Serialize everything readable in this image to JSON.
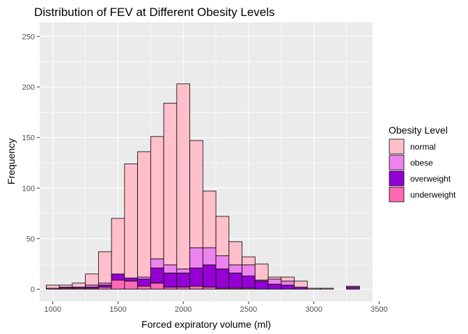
{
  "chart_data": {
    "type": "bar",
    "stacked": true,
    "title": "Distribution of FEV at Different Obesity Levels",
    "xlabel": "Forced expiratory volume (ml)",
    "ylabel": "Frequency",
    "xlim": [
      900,
      3450
    ],
    "ylim": [
      -12,
      264
    ],
    "x_ticks": [
      1000,
      1500,
      2000,
      2500,
      3000,
      3500
    ],
    "y_ticks": [
      0,
      50,
      100,
      150,
      200,
      250
    ],
    "bin_width": 100,
    "bin_centers": [
      1000,
      1100,
      1200,
      1300,
      1400,
      1500,
      1600,
      1700,
      1800,
      1900,
      2000,
      2100,
      2200,
      2300,
      2400,
      2500,
      2600,
      2700,
      2800,
      2900,
      3000,
      3100,
      3200,
      3300
    ],
    "legend": {
      "title": "Obesity Level",
      "position": "right"
    },
    "grid": true,
    "series": [
      {
        "name": "underweight",
        "color": "#ff69b4",
        "values": [
          1,
          1,
          1,
          1,
          2,
          9,
          8,
          3,
          6,
          2,
          2,
          3,
          2,
          1,
          1,
          1,
          0,
          0,
          0,
          0,
          0,
          0,
          0,
          0
        ]
      },
      {
        "name": "overweight",
        "color": "#9400d3",
        "values": [
          0,
          1,
          1,
          1,
          2,
          6,
          3,
          7,
          15,
          14,
          14,
          18,
          22,
          19,
          15,
          12,
          8,
          5,
          4,
          2,
          0,
          0,
          0,
          2
        ]
      },
      {
        "name": "obese",
        "color": "#ee82ee",
        "values": [
          0,
          0,
          0,
          2,
          2,
          0,
          0,
          2,
          9,
          8,
          4,
          20,
          17,
          13,
          8,
          11,
          1,
          5,
          4,
          0,
          0,
          0,
          0,
          0
        ]
      },
      {
        "name": "normal",
        "color": "#ffc0cb",
        "values": [
          3,
          2,
          4,
          11,
          31,
          55,
          113,
          124,
          121,
          160,
          183,
          106,
          56,
          39,
          23,
          8,
          16,
          2,
          4,
          6,
          1,
          1,
          0,
          1
        ]
      }
    ],
    "legend_order": [
      "normal",
      "obese",
      "overweight",
      "underweight"
    ]
  },
  "colors": {
    "panel_background": "#ebebeb",
    "grid_major": "#ffffff",
    "bar_outline": "#000000"
  }
}
